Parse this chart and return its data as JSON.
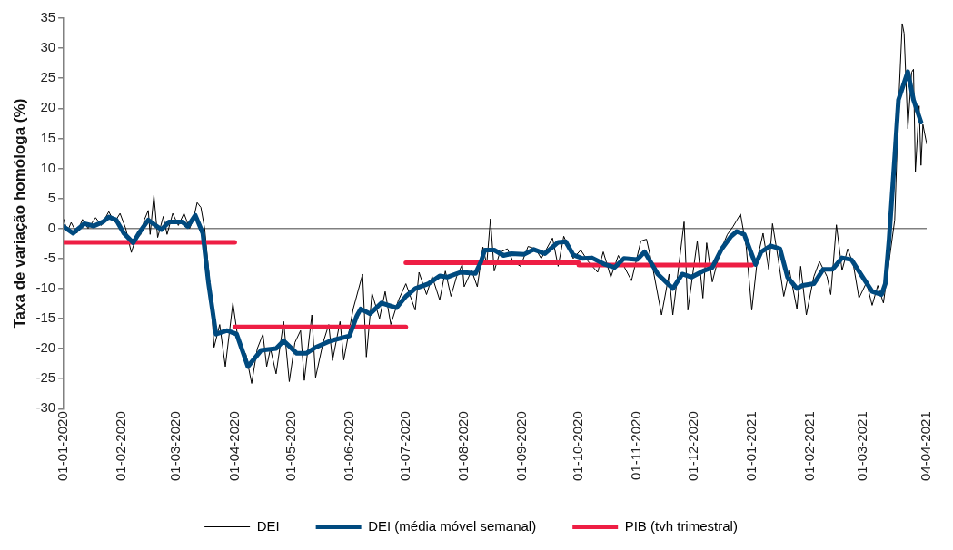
{
  "chart_data": {
    "type": "line",
    "ylabel": "Taxa de variação homóloga (%)",
    "legend": "bottom",
    "marker": "none",
    "grid": false,
    "xlim": [
      "2020-01-01",
      "2021-04-04"
    ],
    "xticks": [
      {
        "value": "2020-01-01",
        "label": "01-01-2020"
      },
      {
        "value": "2020-02-01",
        "label": "01-02-2020"
      },
      {
        "value": "2020-03-01",
        "label": "01-03-2020"
      },
      {
        "value": "2020-04-01",
        "label": "01-04-2020"
      },
      {
        "value": "2020-05-01",
        "label": "01-05-2020"
      },
      {
        "value": "2020-06-01",
        "label": "01-06-2020"
      },
      {
        "value": "2020-07-01",
        "label": "01-07-2020"
      },
      {
        "value": "2020-08-01",
        "label": "01-08-2020"
      },
      {
        "value": "2020-09-01",
        "label": "01-09-2020"
      },
      {
        "value": "2020-10-01",
        "label": "01-10-2020"
      },
      {
        "value": "2020-11-01",
        "label": "01-11-2020"
      },
      {
        "value": "2020-12-01",
        "label": "01-12-2020"
      },
      {
        "value": "2021-01-01",
        "label": "01-01-2021"
      },
      {
        "value": "2021-02-01",
        "label": "01-02-2021"
      },
      {
        "value": "2021-03-01",
        "label": "01-03-2021"
      },
      {
        "value": "2021-04-04",
        "label": "04-04-2021"
      }
    ],
    "ylim": [
      -30,
      35
    ],
    "yticks": [
      -30,
      -25,
      -20,
      -15,
      -10,
      -5,
      0,
      5,
      10,
      15,
      20,
      25,
      30,
      35
    ],
    "series": [
      {
        "name": "DEI",
        "color": "#000000",
        "x": [
          "2020-01-01",
          "2020-01-03",
          "2020-01-05",
          "2020-01-08",
          "2020-01-11",
          "2020-01-14",
          "2020-01-18",
          "2020-01-21",
          "2020-01-25",
          "2020-01-28",
          "2020-01-31",
          "2020-02-03",
          "2020-02-06",
          "2020-02-08",
          "2020-02-11",
          "2020-02-13",
          "2020-02-15",
          "2020-02-16",
          "2020-02-18",
          "2020-02-20",
          "2020-02-23",
          "2020-02-25",
          "2020-02-28",
          "2020-03-02",
          "2020-03-05",
          "2020-03-08",
          "2020-03-10",
          "2020-03-12",
          "2020-03-14",
          "2020-03-16",
          "2020-03-19",
          "2020-03-21",
          "2020-03-24",
          "2020-03-27",
          "2020-03-31",
          "2020-04-03",
          "2020-04-07",
          "2020-04-10",
          "2020-04-13",
          "2020-04-16",
          "2020-04-18",
          "2020-04-20",
          "2020-04-23",
          "2020-04-27",
          "2020-04-30",
          "2020-05-03",
          "2020-05-06",
          "2020-05-08",
          "2020-05-12",
          "2020-05-14",
          "2020-05-18",
          "2020-05-21",
          "2020-05-23",
          "2020-05-27",
          "2020-05-29",
          "2020-06-03",
          "2020-06-08",
          "2020-06-10",
          "2020-06-13",
          "2020-06-17",
          "2020-06-20",
          "2020-06-23",
          "2020-06-27",
          "2020-07-01",
          "2020-07-06",
          "2020-07-08",
          "2020-07-12",
          "2020-07-15",
          "2020-07-19",
          "2020-07-22",
          "2020-07-25",
          "2020-07-28",
          "2020-07-31",
          "2020-08-01",
          "2020-08-05",
          "2020-08-08",
          "2020-08-11",
          "2020-08-13",
          "2020-08-15",
          "2020-08-17",
          "2020-08-20",
          "2020-08-24",
          "2020-08-27",
          "2020-08-31",
          "2020-09-04",
          "2020-09-08",
          "2020-09-11",
          "2020-09-17",
          "2020-09-20",
          "2020-09-23",
          "2020-09-28",
          "2020-10-02",
          "2020-10-06",
          "2020-10-11",
          "2020-10-14",
          "2020-10-18",
          "2020-10-22",
          "2020-10-29",
          "2020-11-03",
          "2020-11-06",
          "2020-11-09",
          "2020-11-14",
          "2020-11-18",
          "2020-11-20",
          "2020-11-26",
          "2020-11-28",
          "2020-12-03",
          "2020-12-06",
          "2020-12-08",
          "2020-12-11",
          "2020-12-15",
          "2020-12-19",
          "2020-12-22",
          "2020-12-26",
          "2020-12-29",
          "2021-01-01",
          "2021-01-04",
          "2021-01-07",
          "2021-01-10",
          "2021-01-12",
          "2021-01-15",
          "2021-01-18",
          "2021-01-21",
          "2021-01-25",
          "2021-01-27",
          "2021-01-30",
          "2021-02-03",
          "2021-02-06",
          "2021-02-10",
          "2021-02-12",
          "2021-02-15",
          "2021-02-18",
          "2021-02-21",
          "2021-02-24",
          "2021-02-27",
          "2021-03-03",
          "2021-03-06",
          "2021-03-09",
          "2021-03-12",
          "2021-03-18",
          "2021-03-20",
          "2021-03-22",
          "2021-03-23",
          "2021-03-25",
          "2021-03-27",
          "2021-03-28",
          "2021-03-29",
          "2021-03-31",
          "2021-04-01",
          "2021-04-02",
          "2021-04-04"
        ],
        "values": [
          1.5,
          -0.5,
          1,
          -0.8,
          1.5,
          0,
          1.8,
          0.5,
          2.8,
          1,
          2.5,
          0,
          -4,
          -2,
          -1,
          1.5,
          3,
          -1,
          5.5,
          -1.5,
          2,
          -1,
          2.5,
          0.5,
          2.5,
          0,
          1.5,
          4.3,
          3.5,
          0,
          -10,
          -19.8,
          -16,
          -23,
          -12.4,
          -19,
          -21,
          -25.8,
          -20,
          -17.6,
          -23,
          -20,
          -24.2,
          -15.5,
          -25.5,
          -19,
          -17,
          -25.3,
          -14.4,
          -24.8,
          -19,
          -16,
          -22,
          -15.5,
          -21.9,
          -13.4,
          -7.6,
          -21.4,
          -10.8,
          -15,
          -10.5,
          -16,
          -12,
          -9.2,
          -13.6,
          -7.3,
          -11,
          -8,
          -11.9,
          -7.1,
          -11.3,
          -8,
          -6,
          -9.7,
          -7,
          -9.7,
          -3.1,
          -6,
          1.6,
          -7.1,
          -4,
          -3.4,
          -5.5,
          -6.3,
          -3,
          -3.4,
          -5,
          -1.6,
          -6.3,
          -1.3,
          -5,
          -3.6,
          -5.5,
          -7.3,
          -3.9,
          -8.1,
          -4.5,
          -8.7,
          -2.1,
          -1.8,
          -6,
          -14.4,
          -7.6,
          -14.4,
          1.1,
          -13.6,
          -2.1,
          -11.6,
          -2.4,
          -8.9,
          -4,
          -1,
          0.3,
          2.4,
          -3,
          -13.6,
          -5,
          -0.8,
          -6.8,
          0.8,
          -5,
          -11.3,
          -7,
          -13.4,
          -6.3,
          -14.4,
          -8,
          -5.5,
          -8,
          -11,
          0.6,
          -7,
          -3.4,
          -6,
          -11.6,
          -9,
          -12.8,
          -9.5,
          -12.4,
          1.4,
          20,
          34.1,
          32.5,
          16.6,
          26,
          26.5,
          9.4,
          20.4,
          10.5,
          17.3,
          14.1
        ]
      },
      {
        "name": "DEI (média móvel semanal)",
        "color": "#004a7f",
        "x": [
          "2020-01-01",
          "2020-01-06",
          "2020-01-12",
          "2020-01-17",
          "2020-01-22",
          "2020-01-25",
          "2020-01-29",
          "2020-02-02",
          "2020-02-07",
          "2020-02-10",
          "2020-02-15",
          "2020-02-22",
          "2020-02-26",
          "2020-03-04",
          "2020-03-07",
          "2020-03-11",
          "2020-03-15",
          "2020-03-18",
          "2020-03-22",
          "2020-03-28",
          "2020-04-02",
          "2020-04-08",
          "2020-04-15",
          "2020-04-23",
          "2020-04-27",
          "2020-05-04",
          "2020-05-09",
          "2020-05-14",
          "2020-05-22",
          "2020-06-01",
          "2020-06-05",
          "2020-06-07",
          "2020-06-12",
          "2020-06-18",
          "2020-06-26",
          "2020-07-01",
          "2020-07-06",
          "2020-07-13",
          "2020-07-19",
          "2020-07-23",
          "2020-07-30",
          "2020-08-07",
          "2020-08-10",
          "2020-08-12",
          "2020-08-17",
          "2020-08-22",
          "2020-08-26",
          "2020-09-02",
          "2020-09-07",
          "2020-09-13",
          "2020-09-20",
          "2020-09-24",
          "2020-09-28",
          "2020-10-03",
          "2020-10-08",
          "2020-10-15",
          "2020-10-20",
          "2020-10-25",
          "2020-11-01",
          "2020-11-05",
          "2020-11-12",
          "2020-11-20",
          "2020-11-25",
          "2020-11-30",
          "2020-12-06",
          "2020-12-11",
          "2020-12-16",
          "2020-12-21",
          "2020-12-24",
          "2020-12-28",
          "2021-01-03",
          "2021-01-06",
          "2021-01-11",
          "2021-01-16",
          "2021-01-20",
          "2021-01-25",
          "2021-01-28",
          "2021-02-03",
          "2021-02-08",
          "2021-02-13",
          "2021-02-18",
          "2021-02-23",
          "2021-03-01",
          "2021-03-06",
          "2021-03-11",
          "2021-03-13",
          "2021-03-15",
          "2021-03-18",
          "2021-03-20",
          "2021-03-25",
          "2021-03-28",
          "2021-04-01"
        ],
        "values": [
          0.3,
          -0.8,
          0.8,
          0.4,
          1.1,
          1.9,
          1.4,
          -0.8,
          -2.4,
          -0.8,
          1.4,
          -0.2,
          1.1,
          1.1,
          0.3,
          2.2,
          -0.8,
          -9,
          -17.6,
          -17,
          -17.6,
          -23,
          -20.3,
          -20,
          -18.7,
          -20.8,
          -20.8,
          -19.8,
          -18.7,
          -17.9,
          -14.5,
          -13.4,
          -14.2,
          -12.4,
          -13.2,
          -11.3,
          -10,
          -9.2,
          -7.9,
          -8.1,
          -7.3,
          -7.5,
          -5.5,
          -3.6,
          -3.6,
          -4.5,
          -4.2,
          -4.3,
          -3.5,
          -4.2,
          -2.3,
          -2.2,
          -4.4,
          -5,
          -4.9,
          -6,
          -6.5,
          -5,
          -5.2,
          -3.9,
          -7.6,
          -10,
          -7.6,
          -8.1,
          -7.1,
          -6.5,
          -3.4,
          -1.3,
          -0.5,
          -1,
          -6,
          -3.9,
          -2.9,
          -3.4,
          -8.1,
          -10,
          -9.5,
          -9.2,
          -6.8,
          -6.8,
          -4.9,
          -5.2,
          -8.1,
          -10.5,
          -11,
          -9.2,
          -1.8,
          11.9,
          21.4,
          26.1,
          21.4,
          17.7
        ]
      },
      {
        "name": "PIB (tvh trimestral)",
        "color": "#ee1e44",
        "x": [
          "2020-01-01",
          "2020-04-01",
          "2020-04-01",
          "2020-07-01",
          "2020-07-01",
          "2020-10-01",
          "2020-10-01",
          "2021-01-01"
        ],
        "values": [
          -2.3,
          -2.3,
          -16.4,
          -16.4,
          -5.7,
          -5.7,
          -6.1,
          -6.1
        ]
      }
    ],
    "ref_lines": [
      {
        "axis": "y",
        "value": 0,
        "color": "#808080"
      }
    ]
  }
}
